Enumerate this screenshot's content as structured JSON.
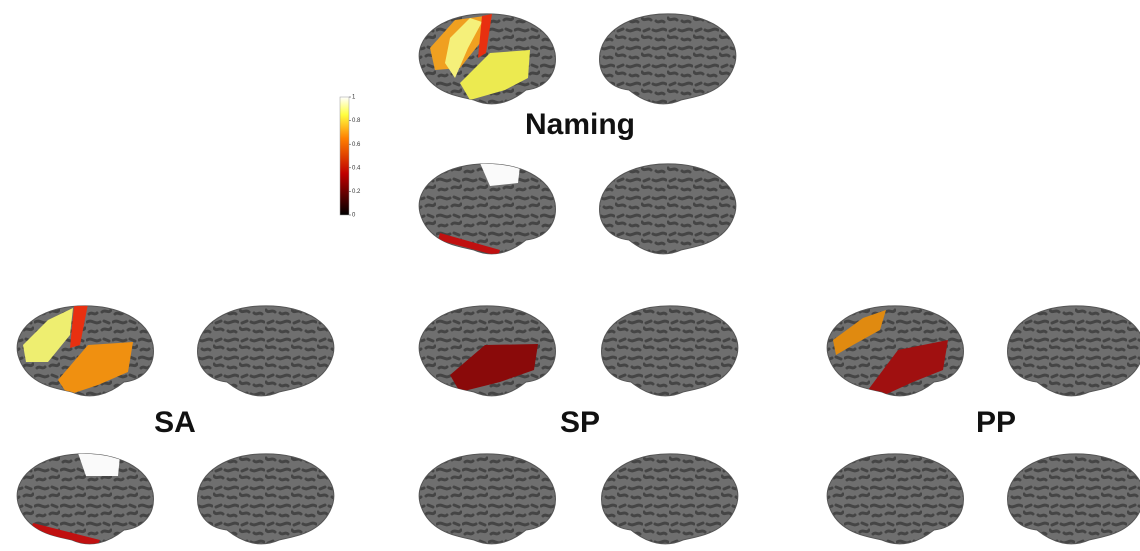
{
  "panels": [
    {
      "label": "Naming"
    },
    {
      "label": "SA"
    },
    {
      "label": "SP"
    },
    {
      "label": "PP"
    }
  ],
  "colorbar": {
    "ticks": [
      1,
      0.8,
      0.6,
      0.4,
      0.2,
      0
    ]
  }
}
